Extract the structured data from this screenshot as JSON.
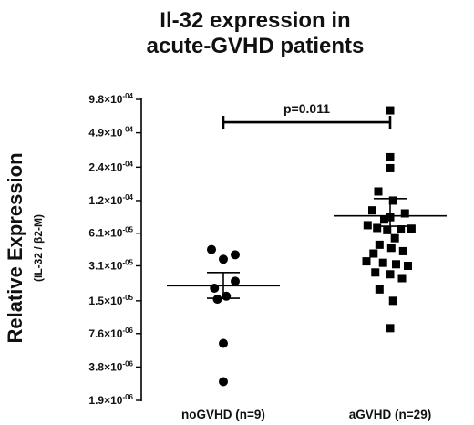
{
  "chart_data": {
    "type": "scatter",
    "title_lines": [
      "Il-32 expression in",
      "acute-GVHD patients"
    ],
    "ylabel": "Relative Expression",
    "ylabel_sub": "(IL-32 / β2-M)",
    "xlabel": "",
    "y_scale": "log2",
    "ylim": [
      1.9e-06,
      0.00098
    ],
    "y_ticks": [
      {
        "value": 0.00098,
        "mantissa": "9.8",
        "exponent": "-04"
      },
      {
        "value": 0.00049,
        "mantissa": "4.9",
        "exponent": "-04"
      },
      {
        "value": 0.00024,
        "mantissa": "2.4",
        "exponent": "-04"
      },
      {
        "value": 0.00012,
        "mantissa": "1.2",
        "exponent": "-04"
      },
      {
        "value": 6.1e-05,
        "mantissa": "6.1",
        "exponent": "-05"
      },
      {
        "value": 3.1e-05,
        "mantissa": "3.1",
        "exponent": "-05"
      },
      {
        "value": 1.5e-05,
        "mantissa": "1.5",
        "exponent": "-05"
      },
      {
        "value": 7.6e-06,
        "mantissa": "7.6",
        "exponent": "-06"
      },
      {
        "value": 3.8e-06,
        "mantissa": "3.8",
        "exponent": "-06"
      },
      {
        "value": 1.9e-06,
        "mantissa": "1.9",
        "exponent": "-06"
      }
    ],
    "categories": [
      "noGVHD (n=9)",
      "aGVHD (n=29)"
    ],
    "groups": [
      {
        "category": "noGVHD (n=9)",
        "marker": "circle",
        "points": [
          {
            "x": -0.2,
            "y": 4.35e-05
          },
          {
            "x": 0.2,
            "y": 3.9e-05
          },
          {
            "x": 0.0,
            "y": 3.55e-05
          },
          {
            "x": 0.2,
            "y": 2.25e-05
          },
          {
            "x": -0.15,
            "y": 1.95e-05
          },
          {
            "x": 0.05,
            "y": 1.65e-05
          },
          {
            "x": -0.1,
            "y": 1.55e-05
          },
          {
            "x": 0.0,
            "y": 6.2e-06
          },
          {
            "x": 0.0,
            "y": 2.8e-06
          }
        ],
        "mean": 2.05e-05,
        "sem_upper": 2.7e-05,
        "sem_lower": 1.58e-05
      },
      {
        "category": "aGVHD (n=29)",
        "marker": "square",
        "points": [
          {
            "x": 0.0,
            "y": 0.00078
          },
          {
            "x": 0.0,
            "y": 0.000295
          },
          {
            "x": 0.0,
            "y": 0.000235
          },
          {
            "x": -0.2,
            "y": 0.000145
          },
          {
            "x": 0.05,
            "y": 0.00012
          },
          {
            "x": -0.3,
            "y": 9.8e-05
          },
          {
            "x": 0.25,
            "y": 9.2e-05
          },
          {
            "x": 0.0,
            "y": 8.5e-05
          },
          {
            "x": -0.1,
            "y": 8.1e-05
          },
          {
            "x": -0.38,
            "y": 7.2e-05
          },
          {
            "x": -0.22,
            "y": 6.8e-05
          },
          {
            "x": -0.05,
            "y": 6.5e-05
          },
          {
            "x": 0.18,
            "y": 6.6e-05
          },
          {
            "x": 0.36,
            "y": 6.7e-05
          },
          {
            "x": 0.08,
            "y": 5.5e-05
          },
          {
            "x": -0.18,
            "y": 4.8e-05
          },
          {
            "x": 0.02,
            "y": 4.5e-05
          },
          {
            "x": 0.22,
            "y": 4.2e-05
          },
          {
            "x": -0.28,
            "y": 4e-05
          },
          {
            "x": -0.4,
            "y": 3.4e-05
          },
          {
            "x": -0.12,
            "y": 3.3e-05
          },
          {
            "x": 0.1,
            "y": 3.2e-05
          },
          {
            "x": 0.3,
            "y": 3.1e-05
          },
          {
            "x": -0.25,
            "y": 2.7e-05
          },
          {
            "x": 0.0,
            "y": 2.6e-05
          },
          {
            "x": 0.2,
            "y": 2.4e-05
          },
          {
            "x": -0.18,
            "y": 1.9e-05
          },
          {
            "x": 0.05,
            "y": 1.5e-05
          },
          {
            "x": 0.0,
            "y": 8.5e-06
          }
        ],
        "mean": 8.75e-05,
        "sem_upper": 0.000125,
        "sem_lower": 7.05e-05
      }
    ],
    "annotations": [
      {
        "text": "p=0.011",
        "from": "noGVHD (n=9)",
        "to": "aGVHD (n=29)",
        "y": 0.00061
      }
    ],
    "grid": false,
    "legend": "none"
  }
}
